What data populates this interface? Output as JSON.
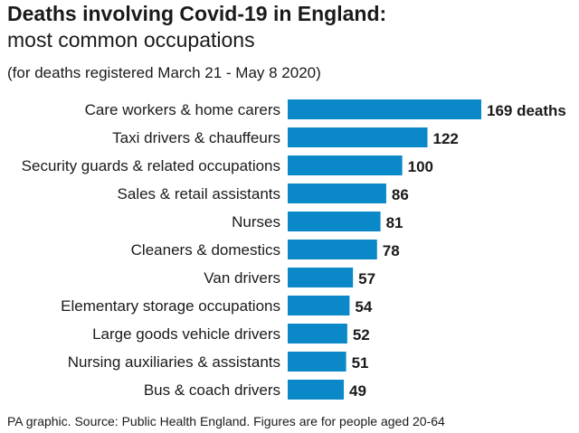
{
  "colors": {
    "bar": "#0a88c8",
    "text": "#1a1a1a"
  },
  "chart_data": {
    "type": "bar",
    "orientation": "horizontal",
    "title": "Deaths involving Covid-19 in England:",
    "subtitle": "most common occupations",
    "note": "(for deaths registered March 21 - May 8 2020)",
    "source": "PA graphic. Source: Public Health England. Figures are for people aged 20-64",
    "categories": [
      "Care workers & home carers",
      "Taxi drivers & chauffeurs",
      "Security guards & related occupations",
      "Sales & retail assistants",
      "Nurses",
      "Cleaners & domestics",
      "Van drivers",
      "Elementary storage occupations",
      "Large goods vehicle drivers",
      "Nursing auxiliaries & assistants",
      "Bus & coach drivers"
    ],
    "values": [
      169,
      122,
      100,
      86,
      81,
      78,
      57,
      54,
      52,
      51,
      49
    ],
    "value_labels": [
      "169 deaths",
      "122",
      "100",
      "86",
      "81",
      "78",
      "57",
      "54",
      "52",
      "51",
      "49"
    ],
    "xlim": [
      0,
      169
    ],
    "grid": false,
    "legend": "none"
  }
}
